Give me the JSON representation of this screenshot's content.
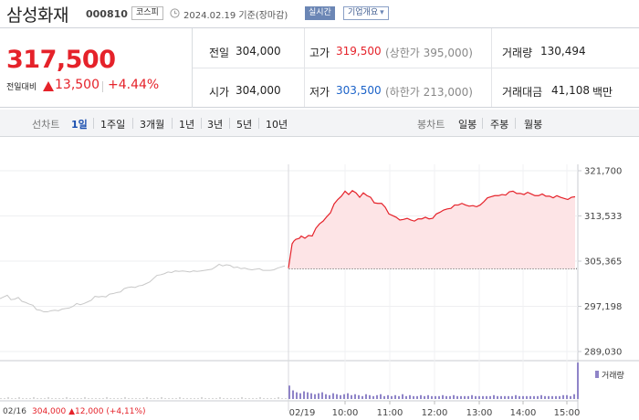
{
  "header": {
    "company": "삼성화재",
    "code": "000810",
    "market": "코스피",
    "date_text": "2024.02.19 기준(장마감)",
    "realtime_label": "실시간",
    "overview_label": "기업개요",
    "overview_arrow": "▾"
  },
  "quote": {
    "price": "317,500",
    "change_label": "전일대비",
    "change_value": "13,500",
    "change_pct": "+4.44%",
    "prev_close_label": "전일",
    "prev_close": "304,000",
    "open_label": "시가",
    "open": "304,000",
    "high_label": "고가",
    "high": "319,500",
    "upper_limit": "(상한가 395,000)",
    "low_label": "저가",
    "low": "303,500",
    "lower_limit": "(하한가 213,000)",
    "volume_label": "거래량",
    "volume": "130,494",
    "amount_label": "거래대금",
    "amount": "41,108",
    "amount_unit": "백만"
  },
  "tabs": {
    "line_label": "선차트",
    "line_periods": [
      "1일",
      "1주일",
      "3개월",
      "1년",
      "3년",
      "5년",
      "10년"
    ],
    "active_period": "1일",
    "candle_label": "봉차트",
    "candle_periods": [
      "일봉",
      "주봉",
      "월봉"
    ]
  },
  "colors": {
    "up": "#e5222a",
    "down": "#1b62c8",
    "area_fill": "#fde4e6",
    "prev_day_line": "#c8c8c8",
    "volume_bar": "#8f84c8"
  },
  "chart_data": {
    "type": "line",
    "y_ticks": [
      "321,700",
      "313,533",
      "305,365",
      "297,198",
      "289,030"
    ],
    "ylim": [
      289030,
      321700
    ],
    "reference_value": 304000,
    "x_ticks": [
      "02/19",
      "10:00",
      "11:00",
      "12:00",
      "13:00",
      "14:00",
      "15:00"
    ],
    "legend": "거래량",
    "footer_date": "02/16",
    "footer_info": "304,000 ▲12,000 (+4,11%)",
    "series": [
      {
        "x": [
          0,
          4,
          8,
          12,
          16,
          20,
          24,
          28,
          32,
          36,
          40,
          44,
          48,
          52,
          56,
          60,
          64,
          68,
          72,
          76,
          80,
          84,
          88,
          92,
          96,
          100,
          104,
          108,
          112,
          116,
          120,
          124,
          128,
          132,
          136,
          140,
          144,
          148,
          152,
          156,
          160,
          164,
          168,
          172,
          176,
          180,
          184,
          188,
          192,
          196,
          200,
          204,
          208,
          212,
          216,
          220,
          224,
          228,
          232,
          236,
          240,
          244,
          248,
          252,
          256,
          260,
          264,
          268,
          272,
          276,
          280,
          284,
          288,
          292,
          296,
          300,
          304,
          308,
          312
        ],
        "values": [
          298600,
          298900,
          299200,
          298400,
          298500,
          298800,
          298100,
          297900,
          297600,
          297400,
          296600,
          296500,
          296200,
          296200,
          296400,
          296500,
          296400,
          296700,
          296800,
          296900,
          297200,
          297700,
          297500,
          297700,
          298000,
          298300,
          299000,
          298900,
          299000,
          298900,
          299400,
          299500,
          299700,
          299800,
          300400,
          300600,
          300700,
          300600,
          300900,
          301000,
          301300,
          301600,
          302200,
          302800,
          302900,
          303100,
          303400,
          303300,
          303600,
          303500,
          303600,
          303500,
          303400,
          303600,
          303500,
          303600,
          303700,
          303800,
          303900,
          304300,
          304800,
          304500,
          304700,
          304600,
          304200,
          304300,
          304000,
          304100,
          303900,
          303800,
          303900,
          304000,
          303700,
          303700,
          303700,
          303800,
          304100,
          304300,
          304500
        ]
      },
      {
        "x": [
          316,
          318,
          320,
          322,
          324,
          326,
          328,
          330,
          334,
          338,
          342,
          346,
          350,
          354,
          358,
          362,
          366,
          370,
          374,
          378,
          382,
          386,
          390,
          394,
          398,
          402,
          406,
          410,
          414,
          418,
          422,
          426,
          430,
          434,
          438,
          442,
          446,
          450,
          454,
          458,
          462,
          466,
          470,
          474,
          478,
          482,
          486,
          490,
          494,
          498,
          502,
          506,
          510,
          514,
          518,
          522,
          526,
          530,
          534,
          538,
          542,
          546,
          550,
          554,
          558,
          562,
          566,
          570,
          574,
          578,
          582,
          586,
          590,
          594,
          598,
          602,
          606,
          610,
          614,
          618,
          622,
          626,
          630
        ],
        "values": [
          304100,
          306300,
          308500,
          309000,
          309300,
          309400,
          309500,
          309900,
          309500,
          310000,
          309900,
          311300,
          312100,
          312600,
          313400,
          314100,
          315700,
          316500,
          317100,
          318000,
          317400,
          318100,
          317700,
          316900,
          317700,
          317200,
          316900,
          315900,
          315800,
          315800,
          315100,
          313900,
          313600,
          313300,
          312800,
          312900,
          313100,
          312800,
          312600,
          313000,
          313000,
          313300,
          313000,
          313100,
          313900,
          314200,
          314600,
          314800,
          314900,
          315500,
          315500,
          315800,
          315500,
          315300,
          315400,
          315200,
          315500,
          316100,
          316800,
          317000,
          317200,
          317200,
          317400,
          317300,
          317900,
          318000,
          317600,
          317600,
          317400,
          317800,
          317500,
          317200,
          317200,
          317500,
          317100,
          317100,
          316800,
          317200,
          316900,
          316700,
          316500,
          316900,
          317000
        ]
      }
    ],
    "volume": [
      1,
      1,
      2,
      1,
      1,
      2,
      1,
      1,
      1,
      2,
      1,
      1,
      1,
      2,
      1,
      1,
      1,
      1,
      2,
      1,
      1,
      1,
      1,
      2,
      1,
      1,
      1,
      1,
      1,
      2,
      1,
      1,
      1,
      1,
      2,
      1,
      1,
      1,
      1,
      1,
      2,
      1,
      1,
      1,
      2,
      1,
      1,
      1,
      1,
      2,
      1,
      1,
      1,
      1,
      1,
      2,
      1,
      1,
      1,
      1,
      2,
      1,
      1,
      1,
      1,
      1,
      2,
      1,
      1,
      1,
      1,
      2,
      1,
      1,
      1,
      1,
      2,
      1,
      1,
      14,
      9,
      7,
      6,
      8,
      7,
      6,
      5,
      6,
      7,
      5,
      4,
      6,
      5,
      4,
      5,
      6,
      4,
      5,
      4,
      3,
      5,
      4,
      3,
      4,
      5,
      3,
      4,
      3,
      4,
      3,
      5,
      3,
      4,
      3,
      3,
      4,
      3,
      4,
      3,
      3,
      3,
      4,
      3,
      3,
      4,
      3,
      3,
      3,
      3,
      4,
      3,
      3,
      3,
      3,
      3,
      4,
      3,
      3,
      3,
      3,
      3,
      4,
      3,
      3,
      3,
      3,
      3,
      3,
      4,
      3,
      3,
      3,
      3,
      3,
      4,
      4,
      3,
      5,
      38
    ]
  }
}
